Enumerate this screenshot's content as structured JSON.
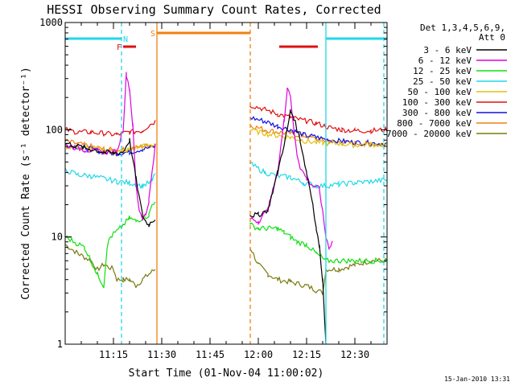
{
  "chart_data": {
    "type": "line",
    "title": "HESSI Observing Summary Count Rates, Corrected",
    "xlabel": "Start Time (01-Nov-04 11:00:02)",
    "ylabel": "Corrected Count Rate (s⁻¹ detector⁻¹)",
    "yscale": "log",
    "ylim": [
      1,
      1000
    ],
    "xlim_minutes_after_start": [
      0,
      100
    ],
    "x_ticks": [
      {
        "minute": 15,
        "label": "11:15"
      },
      {
        "minute": 30,
        "label": "11:30"
      },
      {
        "minute": 45,
        "label": "11:45"
      },
      {
        "minute": 60,
        "label": "12:00"
      },
      {
        "minute": 75,
        "label": "12:15"
      },
      {
        "minute": 90,
        "label": "12:30"
      }
    ],
    "y_ticks": [
      {
        "value": 1,
        "label": "1"
      },
      {
        "value": 10,
        "label": "10"
      },
      {
        "value": 100,
        "label": "100"
      },
      {
        "value": 1000,
        "label": "1000"
      }
    ],
    "legend_title": [
      "Det 1,3,4,5,6,9,",
      "Att 0"
    ],
    "legend_position": "right",
    "footer_date": "15-Jan-2010 13:31",
    "flags": [
      {
        "label": "F",
        "color": "#e01010",
        "segments": [
          [
            18.0,
            22.0
          ],
          [
            66.5,
            78.5
          ]
        ]
      },
      {
        "label": "N",
        "color": "#20d8e8",
        "segments": [
          [
            0,
            17.5
          ],
          [
            81.0,
            100
          ]
        ]
      },
      {
        "label": "S",
        "color": "#f08010",
        "segments": [
          [
            28.5,
            57.5
          ]
        ]
      }
    ],
    "vertical_markers": [
      {
        "minute": 17.5,
        "color": "#20d8e8",
        "style": "dashed"
      },
      {
        "minute": 28.5,
        "color": "#f08010",
        "style": "solid"
      },
      {
        "minute": 57.5,
        "color": "#f08010",
        "style": "dashed"
      },
      {
        "minute": 81.0,
        "color": "#20d8e8",
        "style": "solid"
      },
      {
        "minute": 99.0,
        "color": "#20d8e8",
        "style": "dashed"
      }
    ],
    "series": [
      {
        "name": "3 - 6 keV",
        "color": "#000000",
        "points": [
          [
            0,
            75
          ],
          [
            6,
            68
          ],
          [
            12,
            62
          ],
          [
            15,
            60
          ],
          [
            18,
            62
          ],
          [
            20,
            80
          ],
          [
            22,
            35
          ],
          [
            24,
            16
          ],
          [
            25,
            14
          ],
          [
            26,
            13
          ],
          [
            28,
            15
          ],
          [
            57.5,
            16
          ],
          [
            60,
            16
          ],
          [
            63,
            18
          ],
          [
            66,
            40
          ],
          [
            69,
            100
          ],
          [
            70,
            150
          ],
          [
            71,
            130
          ],
          [
            73,
            80
          ],
          [
            75,
            40
          ],
          [
            77,
            20
          ],
          [
            78,
            12
          ],
          [
            79,
            8
          ],
          [
            80,
            4
          ],
          [
            81,
            1
          ]
        ]
      },
      {
        "name": "6 - 12 keV",
        "color": "#e000e0",
        "points": [
          [
            0,
            72
          ],
          [
            6,
            65
          ],
          [
            12,
            62
          ],
          [
            16,
            62
          ],
          [
            18,
            100
          ],
          [
            19,
            330
          ],
          [
            20,
            240
          ],
          [
            21,
            110
          ],
          [
            22,
            30
          ],
          [
            23,
            18
          ],
          [
            24,
            15
          ],
          [
            25,
            16
          ],
          [
            26,
            22
          ],
          [
            27,
            40
          ],
          [
            28,
            70
          ],
          [
            57.5,
            15
          ],
          [
            60,
            14
          ],
          [
            63,
            18
          ],
          [
            66,
            40
          ],
          [
            68,
            120
          ],
          [
            69,
            250
          ],
          [
            70,
            210
          ],
          [
            71,
            100
          ],
          [
            72,
            60
          ],
          [
            73,
            45
          ],
          [
            75,
            35
          ],
          [
            77,
            30
          ],
          [
            79,
            28
          ],
          [
            81,
            10
          ],
          [
            82,
            8
          ],
          [
            83,
            9
          ]
        ]
      },
      {
        "name": "12 - 25 keV",
        "color": "#10e010",
        "points": [
          [
            0,
            10
          ],
          [
            6,
            8
          ],
          [
            10,
            4.5
          ],
          [
            12,
            3.5
          ],
          [
            13,
            8
          ],
          [
            14,
            10
          ],
          [
            17,
            12
          ],
          [
            20,
            15
          ],
          [
            22,
            14
          ],
          [
            24,
            15
          ],
          [
            26,
            16
          ],
          [
            27,
            20
          ],
          [
            28,
            22
          ],
          [
            57.5,
            13
          ],
          [
            60,
            12
          ],
          [
            63,
            12
          ],
          [
            66,
            12
          ],
          [
            68,
            11
          ],
          [
            70,
            10
          ],
          [
            72,
            9
          ],
          [
            75,
            8.5
          ],
          [
            78,
            7
          ],
          [
            81,
            6
          ],
          [
            85,
            6
          ],
          [
            90,
            6
          ],
          [
            95,
            6
          ],
          [
            100,
            6
          ]
        ]
      },
      {
        "name": "25 - 50 keV",
        "color": "#20d8e8",
        "points": [
          [
            0,
            42
          ],
          [
            4,
            38
          ],
          [
            8,
            37
          ],
          [
            12,
            35
          ],
          [
            16,
            33
          ],
          [
            20,
            32
          ],
          [
            24,
            30
          ],
          [
            27,
            33
          ],
          [
            28,
            40
          ],
          [
            57.5,
            48
          ],
          [
            62,
            40
          ],
          [
            66,
            37
          ],
          [
            70,
            36
          ],
          [
            74,
            32
          ],
          [
            78,
            30
          ],
          [
            81,
            30
          ],
          [
            85,
            31
          ],
          [
            90,
            32
          ],
          [
            95,
            33
          ],
          [
            100,
            34
          ]
        ]
      },
      {
        "name": "50 - 100 keV",
        "color": "#e0c010",
        "points": [
          [
            0,
            70
          ],
          [
            6,
            68
          ],
          [
            12,
            65
          ],
          [
            16,
            62
          ],
          [
            20,
            65
          ],
          [
            24,
            70
          ],
          [
            27,
            72
          ],
          [
            28,
            75
          ],
          [
            57.5,
            100
          ],
          [
            62,
            92
          ],
          [
            66,
            88
          ],
          [
            70,
            85
          ],
          [
            75,
            78
          ],
          [
            80,
            75
          ],
          [
            85,
            74
          ],
          [
            90,
            72
          ],
          [
            95,
            73
          ],
          [
            100,
            72
          ]
        ]
      },
      {
        "name": "100 - 300 keV",
        "color": "#e01010",
        "points": [
          [
            0,
            100
          ],
          [
            4,
            95
          ],
          [
            8,
            95
          ],
          [
            12,
            92
          ],
          [
            16,
            90
          ],
          [
            20,
            95
          ],
          [
            24,
            98
          ],
          [
            26,
            110
          ],
          [
            28,
            120
          ],
          [
            57.5,
            170
          ],
          [
            62,
            155
          ],
          [
            66,
            140
          ],
          [
            70,
            130
          ],
          [
            75,
            120
          ],
          [
            78,
            115
          ],
          [
            82,
            105
          ],
          [
            86,
            100
          ],
          [
            90,
            98
          ],
          [
            95,
            98
          ],
          [
            100,
            100
          ]
        ]
      },
      {
        "name": "300 - 800 keV",
        "color": "#1010e0",
        "points": [
          [
            0,
            72
          ],
          [
            6,
            68
          ],
          [
            12,
            62
          ],
          [
            16,
            60
          ],
          [
            20,
            62
          ],
          [
            24,
            66
          ],
          [
            28,
            70
          ],
          [
            57.5,
            130
          ],
          [
            62,
            120
          ],
          [
            66,
            108
          ],
          [
            70,
            100
          ],
          [
            74,
            90
          ],
          [
            78,
            85
          ],
          [
            82,
            80
          ],
          [
            86,
            78
          ],
          [
            90,
            76
          ],
          [
            95,
            75
          ],
          [
            100,
            74
          ]
        ]
      },
      {
        "name": "800 - 7000 keV",
        "color": "#f08010",
        "points": [
          [
            0,
            78
          ],
          [
            6,
            72
          ],
          [
            12,
            66
          ],
          [
            16,
            64
          ],
          [
            20,
            66
          ],
          [
            24,
            70
          ],
          [
            28,
            72
          ],
          [
            57.5,
            110
          ],
          [
            62,
            100
          ],
          [
            66,
            95
          ],
          [
            70,
            92
          ],
          [
            74,
            88
          ],
          [
            78,
            82
          ],
          [
            82,
            78
          ],
          [
            86,
            76
          ],
          [
            90,
            75
          ],
          [
            95,
            74
          ],
          [
            100,
            74
          ]
        ]
      },
      {
        "name": "7000 - 20000 keV",
        "color": "#7a7a10",
        "points": [
          [
            0,
            8.5
          ],
          [
            4,
            7
          ],
          [
            8,
            6
          ],
          [
            10,
            5
          ],
          [
            12,
            5.5
          ],
          [
            15,
            5
          ],
          [
            16,
            4
          ],
          [
            18,
            4
          ],
          [
            20,
            4
          ],
          [
            22,
            3.5
          ],
          [
            24,
            4
          ],
          [
            26,
            4.5
          ],
          [
            28,
            5
          ],
          [
            57.5,
            8
          ],
          [
            60,
            5.5
          ],
          [
            63,
            4.5
          ],
          [
            66,
            4
          ],
          [
            70,
            3.8
          ],
          [
            75,
            3.5
          ],
          [
            78,
            3.2
          ],
          [
            80,
            3
          ],
          [
            81,
            5
          ],
          [
            85,
            5
          ],
          [
            90,
            5.5
          ],
          [
            95,
            6
          ],
          [
            100,
            6
          ]
        ]
      }
    ]
  }
}
